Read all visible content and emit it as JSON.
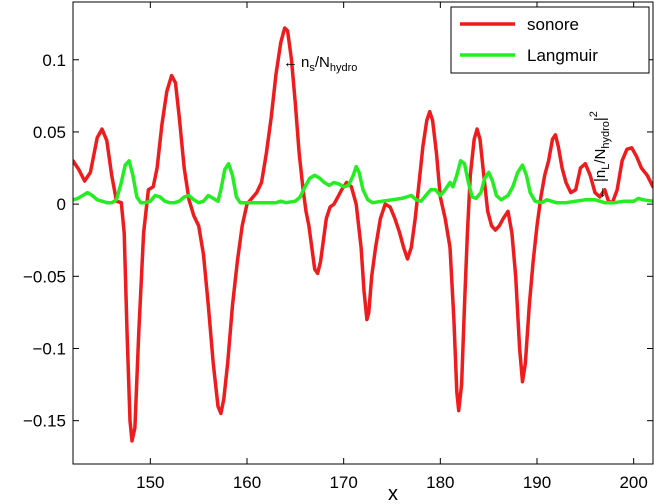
{
  "chart_data": {
    "type": "line",
    "title": "",
    "xlabel": "x",
    "ylabel": "",
    "xlim": [
      142,
      202
    ],
    "ylim": [
      -0.18,
      0.14
    ],
    "xticks": [
      150,
      160,
      170,
      180,
      190,
      200
    ],
    "xtick_labels": [
      "150",
      "160",
      "170",
      "180",
      "190",
      "200"
    ],
    "yticks": [
      -0.15,
      -0.1,
      -0.05,
      0,
      0.05,
      0.1
    ],
    "ytick_labels": [
      "−0.15",
      "−0.1",
      "−0.05",
      "0",
      "0.05",
      "0.1"
    ],
    "grid": false,
    "legend_position": "top-right",
    "series": [
      {
        "name": "sonore",
        "color": "#ee1c1c",
        "points": [
          [
            142,
            0.03
          ],
          [
            142.6,
            0.024
          ],
          [
            143.2,
            0.016
          ],
          [
            143.8,
            0.022
          ],
          [
            144.5,
            0.046
          ],
          [
            145,
            0.052
          ],
          [
            145.5,
            0.044
          ],
          [
            146,
            0.02
          ],
          [
            146.5,
            0.002
          ],
          [
            147,
            0.001
          ],
          [
            147.3,
            -0.02
          ],
          [
            147.6,
            -0.09
          ],
          [
            147.9,
            -0.15
          ],
          [
            148.1,
            -0.164
          ],
          [
            148.4,
            -0.155
          ],
          [
            148.8,
            -0.09
          ],
          [
            149.3,
            -0.02
          ],
          [
            149.8,
            0.01
          ],
          [
            150.3,
            0.012
          ],
          [
            150.7,
            0.025
          ],
          [
            151.2,
            0.055
          ],
          [
            151.7,
            0.078
          ],
          [
            152.2,
            0.089
          ],
          [
            152.6,
            0.084
          ],
          [
            153,
            0.06
          ],
          [
            153.5,
            0.025
          ],
          [
            154,
            0.003
          ],
          [
            154.5,
            -0.008
          ],
          [
            155,
            -0.015
          ],
          [
            155.5,
            -0.035
          ],
          [
            156,
            -0.07
          ],
          [
            156.5,
            -0.11
          ],
          [
            157,
            -0.14
          ],
          [
            157.3,
            -0.145
          ],
          [
            157.6,
            -0.135
          ],
          [
            158,
            -0.11
          ],
          [
            158.5,
            -0.07
          ],
          [
            159,
            -0.04
          ],
          [
            159.5,
            -0.015
          ],
          [
            160,
            0
          ],
          [
            160.5,
            0.004
          ],
          [
            161,
            0.008
          ],
          [
            161.5,
            0.015
          ],
          [
            162,
            0.035
          ],
          [
            162.5,
            0.06
          ],
          [
            163,
            0.09
          ],
          [
            163.5,
            0.112
          ],
          [
            163.9,
            0.122
          ],
          [
            164.2,
            0.12
          ],
          [
            164.6,
            0.1
          ],
          [
            165,
            0.07
          ],
          [
            165.4,
            0.035
          ],
          [
            165.8,
            0.01
          ],
          [
            166.1,
            -0.005
          ],
          [
            166.4,
            -0.015
          ],
          [
            166.7,
            -0.03
          ],
          [
            167,
            -0.045
          ],
          [
            167.3,
            -0.048
          ],
          [
            167.6,
            -0.04
          ],
          [
            167.9,
            -0.025
          ],
          [
            168.2,
            -0.01
          ],
          [
            168.6,
            -0.002
          ],
          [
            169,
            0
          ],
          [
            169.4,
            0.005
          ],
          [
            169.8,
            0.01
          ],
          [
            170.3,
            0.015
          ],
          [
            170.8,
            0.012
          ],
          [
            171.3,
            0
          ],
          [
            171.8,
            -0.03
          ],
          [
            172.1,
            -0.06
          ],
          [
            172.4,
            -0.08
          ],
          [
            172.6,
            -0.075
          ],
          [
            172.9,
            -0.05
          ],
          [
            173.3,
            -0.03
          ],
          [
            173.8,
            -0.01
          ],
          [
            174.3,
            0
          ],
          [
            174.8,
            -0.002
          ],
          [
            175.3,
            -0.01
          ],
          [
            175.8,
            -0.02
          ],
          [
            176.2,
            -0.03
          ],
          [
            176.6,
            -0.038
          ],
          [
            177,
            -0.03
          ],
          [
            177.4,
            -0.01
          ],
          [
            177.8,
            0.015
          ],
          [
            178.2,
            0.04
          ],
          [
            178.6,
            0.058
          ],
          [
            178.9,
            0.064
          ],
          [
            179.2,
            0.058
          ],
          [
            179.6,
            0.035
          ],
          [
            180,
            0.005
          ],
          [
            180.5,
            -0.01
          ],
          [
            181,
            -0.03
          ],
          [
            181.4,
            -0.08
          ],
          [
            181.7,
            -0.13
          ],
          [
            181.9,
            -0.143
          ],
          [
            182.2,
            -0.125
          ],
          [
            182.5,
            -0.07
          ],
          [
            182.8,
            -0.02
          ],
          [
            183.1,
            0.02
          ],
          [
            183.5,
            0.045
          ],
          [
            183.8,
            0.052
          ],
          [
            184.1,
            0.045
          ],
          [
            184.5,
            0.02
          ],
          [
            184.9,
            -0.005
          ],
          [
            185.3,
            -0.015
          ],
          [
            185.7,
            -0.018
          ],
          [
            186.1,
            -0.015
          ],
          [
            186.5,
            -0.01
          ],
          [
            187,
            -0.005
          ],
          [
            187.4,
            -0.02
          ],
          [
            187.8,
            -0.05
          ],
          [
            188.2,
            -0.1
          ],
          [
            188.5,
            -0.123
          ],
          [
            188.8,
            -0.11
          ],
          [
            189.2,
            -0.07
          ],
          [
            189.6,
            -0.04
          ],
          [
            190,
            -0.015
          ],
          [
            190.4,
            0.005
          ],
          [
            190.8,
            0.02
          ],
          [
            191.2,
            0.03
          ],
          [
            191.6,
            0.045
          ],
          [
            191.9,
            0.048
          ],
          [
            192.2,
            0.04
          ],
          [
            192.6,
            0.025
          ],
          [
            193,
            0.015
          ],
          [
            193.5,
            0.008
          ],
          [
            194,
            0.01
          ],
          [
            194.5,
            0.025
          ],
          [
            195,
            0.028
          ],
          [
            195.5,
            0.02
          ],
          [
            196,
            0.008
          ],
          [
            196.5,
            0.005
          ],
          [
            197,
            0.01
          ],
          [
            197.4,
            0.002
          ],
          [
            197.8,
            0.001
          ],
          [
            198.3,
            0.01
          ],
          [
            198.8,
            0.03
          ],
          [
            199.3,
            0.038
          ],
          [
            199.8,
            0.039
          ],
          [
            200.3,
            0.033
          ],
          [
            200.8,
            0.025
          ],
          [
            201.4,
            0.02
          ],
          [
            202,
            0.012
          ]
        ]
      },
      {
        "name": "Langmuir",
        "color": "#22ee22",
        "points": [
          [
            142,
            0.003
          ],
          [
            142.5,
            0.004
          ],
          [
            143,
            0.006
          ],
          [
            143.5,
            0.008
          ],
          [
            144,
            0.006
          ],
          [
            144.5,
            0.003
          ],
          [
            145,
            0.002
          ],
          [
            145.5,
            0.001
          ],
          [
            146,
            0.001
          ],
          [
            146.5,
            0.003
          ],
          [
            147,
            0.015
          ],
          [
            147.4,
            0.027
          ],
          [
            147.8,
            0.03
          ],
          [
            148.2,
            0.02
          ],
          [
            148.6,
            0.005
          ],
          [
            149,
            0.001
          ],
          [
            149.5,
            0.001
          ],
          [
            150,
            0.002
          ],
          [
            150.5,
            0.006
          ],
          [
            151,
            0.005
          ],
          [
            151.5,
            0.002
          ],
          [
            152,
            0.001
          ],
          [
            152.5,
            0.001
          ],
          [
            153,
            0.002
          ],
          [
            153.5,
            0.005
          ],
          [
            154,
            0.006
          ],
          [
            154.5,
            0.003
          ],
          [
            155,
            0.001
          ],
          [
            155.5,
            0.002
          ],
          [
            156,
            0.006
          ],
          [
            156.5,
            0.004
          ],
          [
            157,
            0.002
          ],
          [
            157.3,
            0.01
          ],
          [
            157.7,
            0.024
          ],
          [
            158.1,
            0.028
          ],
          [
            158.5,
            0.02
          ],
          [
            158.9,
            0.005
          ],
          [
            159.3,
            0.001
          ],
          [
            160,
            0.001
          ],
          [
            161,
            0.001
          ],
          [
            162,
            0.001
          ],
          [
            163,
            0.001
          ],
          [
            163.5,
            0.002
          ],
          [
            164,
            0.001
          ],
          [
            165,
            0.002
          ],
          [
            165.5,
            0.005
          ],
          [
            166,
            0.012
          ],
          [
            166.5,
            0.018
          ],
          [
            167,
            0.02
          ],
          [
            167.5,
            0.018
          ],
          [
            168,
            0.015
          ],
          [
            168.5,
            0.013
          ],
          [
            169,
            0.015
          ],
          [
            169.5,
            0.014
          ],
          [
            170,
            0.012
          ],
          [
            170.5,
            0.013
          ],
          [
            171,
            0.02
          ],
          [
            171.3,
            0.026
          ],
          [
            171.6,
            0.022
          ],
          [
            172,
            0.01
          ],
          [
            172.5,
            0.003
          ],
          [
            173,
            0.001
          ],
          [
            174,
            0.002
          ],
          [
            175,
            0.003
          ],
          [
            176,
            0.004
          ],
          [
            177,
            0.006
          ],
          [
            177.5,
            0.003
          ],
          [
            178,
            0.002
          ],
          [
            178.5,
            0.006
          ],
          [
            179,
            0.01
          ],
          [
            179.5,
            0.01
          ],
          [
            180,
            0.006
          ],
          [
            180.5,
            0.01
          ],
          [
            181,
            0.015
          ],
          [
            181.3,
            0.012
          ],
          [
            181.7,
            0.02
          ],
          [
            182.1,
            0.03
          ],
          [
            182.5,
            0.028
          ],
          [
            182.9,
            0.015
          ],
          [
            183.3,
            0.005
          ],
          [
            183.7,
            0.004
          ],
          [
            184.2,
            0.008
          ],
          [
            184.6,
            0.018
          ],
          [
            185,
            0.022
          ],
          [
            185.4,
            0.016
          ],
          [
            185.8,
            0.006
          ],
          [
            186.3,
            0.003
          ],
          [
            187,
            0.006
          ],
          [
            187.5,
            0.012
          ],
          [
            188,
            0.022
          ],
          [
            188.5,
            0.027
          ],
          [
            188.9,
            0.02
          ],
          [
            189.3,
            0.008
          ],
          [
            189.8,
            0.002
          ],
          [
            190.5,
            0.001
          ],
          [
            191,
            0.003
          ],
          [
            191.5,
            0.002
          ],
          [
            192,
            0.001
          ],
          [
            193,
            0.001
          ],
          [
            194,
            0.002
          ],
          [
            195,
            0.003
          ],
          [
            196,
            0.003
          ],
          [
            196.5,
            0.002
          ],
          [
            197,
            0.001
          ],
          [
            198,
            0.001
          ],
          [
            199,
            0.002
          ],
          [
            200,
            0.002
          ],
          [
            200.5,
            0.004
          ],
          [
            201,
            0.003
          ],
          [
            202,
            0.002
          ]
        ]
      }
    ],
    "annotations": [
      {
        "arrow": "←",
        "base": "n",
        "sub1": "s",
        "mid": "/N",
        "sub2": "hydro"
      },
      {
        "arrow": "←",
        "base": "|n",
        "sub1": "L",
        "mid": "/N",
        "sub2": "hydro",
        "tail": "|",
        "sup": "2"
      }
    ]
  }
}
